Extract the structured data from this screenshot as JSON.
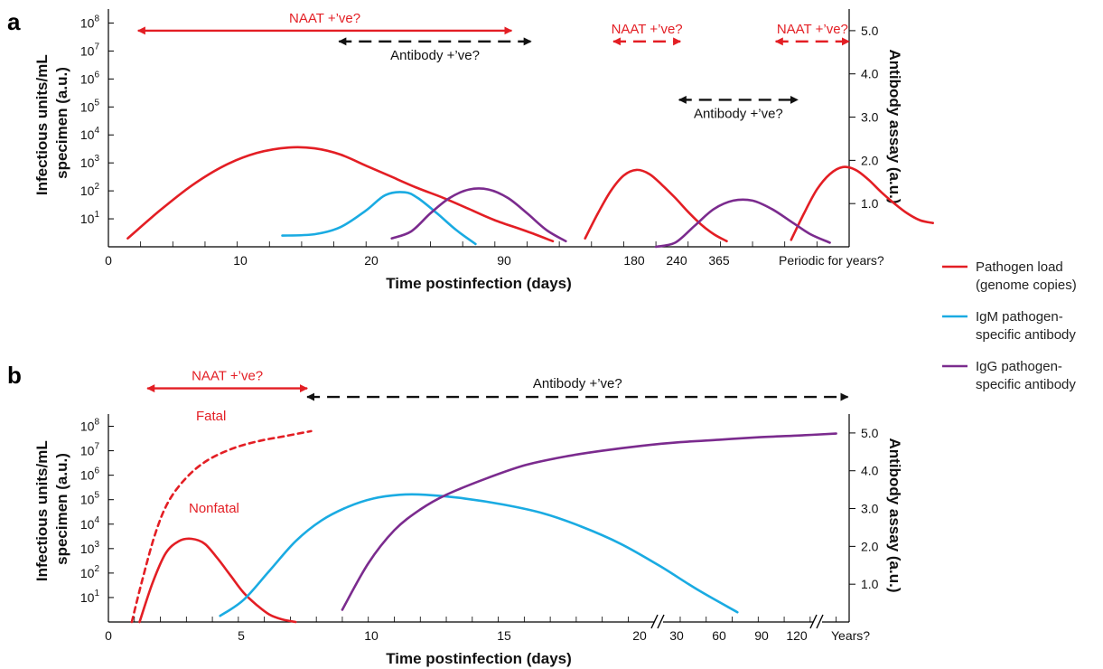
{
  "colors": {
    "pathogen": "#e31e24",
    "igm": "#1aabe2",
    "igg": "#7b2b8e",
    "axis": "#000000",
    "annotation_black": "#111111"
  },
  "legend": [
    {
      "key": "pathogen",
      "label_lines": [
        "Pathogen load",
        "(genome copies)"
      ]
    },
    {
      "key": "igm",
      "label_lines": [
        "IgM pathogen-",
        "specific antibody"
      ]
    },
    {
      "key": "igg",
      "label_lines": [
        "IgG pathogen-",
        "specific antibody"
      ]
    }
  ],
  "chart_data": [
    {
      "panel": "a",
      "type": "line",
      "xlabel": "Time postinfection (days)",
      "ylabel_left": [
        "Infectious units/mL",
        "specimen (a.u.)"
      ],
      "ylabel_right": "Antibody assay (a.u.)",
      "x_ticks": [
        "0",
        "10",
        "20",
        "90",
        "180",
        "240",
        "365",
        "Periodic for years?"
      ],
      "y_left_ticks": [
        {
          "base": "10",
          "exp": "1"
        },
        {
          "base": "10",
          "exp": "2"
        },
        {
          "base": "10",
          "exp": "3"
        },
        {
          "base": "10",
          "exp": "4"
        },
        {
          "base": "10",
          "exp": "5"
        },
        {
          "base": "10",
          "exp": "6"
        },
        {
          "base": "10",
          "exp": "7"
        },
        {
          "base": "10",
          "exp": "8"
        }
      ],
      "y_right_ticks": [
        "1.0",
        "2.0",
        "3.0",
        "4.0",
        "5.0"
      ],
      "ylim_left_log10": [
        0,
        8.5
      ],
      "ylim_right": [
        0,
        5.5
      ],
      "series": [
        {
          "name": "Pathogen load (genome copies)",
          "color_key": "pathogen",
          "axis": "left",
          "segments": [
            {
              "x": [
                1.5,
                4,
                6.5,
                9,
                11.5,
                14,
                16,
                18,
                20,
                22,
                24,
                26,
                28,
                30,
                32.5,
                34.5
              ],
              "y": [
                0.3,
                1.3,
                2.2,
                2.9,
                3.35,
                3.55,
                3.52,
                3.3,
                2.9,
                2.5,
                2.1,
                1.75,
                1.35,
                0.95,
                0.55,
                0.2
              ]
            },
            {
              "x": [
                37,
                38,
                39,
                40,
                41,
                42,
                43,
                44,
                45,
                46,
                47,
                48
              ],
              "y": [
                0.3,
                1.2,
                2.0,
                2.55,
                2.75,
                2.6,
                2.2,
                1.75,
                1.25,
                0.8,
                0.45,
                0.2
              ]
            },
            {
              "x": [
                53,
                54,
                55,
                56,
                57,
                58,
                59,
                60,
                61,
                62,
                63,
                64
              ],
              "y": [
                0.25,
                1.2,
                2.05,
                2.6,
                2.85,
                2.75,
                2.4,
                1.95,
                1.55,
                1.2,
                0.95,
                0.85
              ]
            }
          ]
        },
        {
          "name": "IgM pathogen-specific antibody",
          "color_key": "igm",
          "axis": "left",
          "segments": [
            {
              "x": [
                13.5,
                16,
                18,
                20,
                21.5,
                23,
                24,
                25.5,
                27,
                28.5
              ],
              "y": [
                0.4,
                0.45,
                0.7,
                1.3,
                1.85,
                1.95,
                1.75,
                1.2,
                0.6,
                0.1
              ]
            }
          ]
        },
        {
          "name": "IgG pathogen-specific antibody",
          "color_key": "igg",
          "axis": "left",
          "segments": [
            {
              "x": [
                22,
                23.5,
                25,
                26.5,
                28,
                29.5,
                31,
                32.5,
                34,
                35.5
              ],
              "y": [
                0.3,
                0.55,
                1.2,
                1.75,
                2.05,
                2.05,
                1.75,
                1.2,
                0.6,
                0.2
              ]
            },
            {
              "x": [
                42.5,
                44,
                45.5,
                47,
                48.5,
                50,
                51.5,
                53,
                54.5,
                56
              ],
              "y": [
                0,
                0.15,
                0.75,
                1.35,
                1.65,
                1.65,
                1.35,
                0.9,
                0.45,
                0.15
              ]
            }
          ]
        }
      ],
      "annotations": [
        {
          "label": "NAAT +’ve?",
          "color_key": "pathogen",
          "x_from": 2.3,
          "x_to": 31.3,
          "y": 5.0,
          "dashed": false
        },
        {
          "label": "Antibody +’ve?",
          "color_key": "annotation_black",
          "x_from": 17.9,
          "x_to": 32.8,
          "y": 4.75,
          "dashed": true
        },
        {
          "label": "NAAT +’ve?",
          "color_key": "pathogen",
          "x_from": 39.2,
          "x_to": 44.4,
          "y": 4.75,
          "dashed": true
        },
        {
          "label": "Antibody +’ve?",
          "color_key": "annotation_black",
          "x_from": 44.3,
          "x_to": 53.5,
          "y": 3.4,
          "dashed": true
        },
        {
          "label": "NAAT +’ve?",
          "color_key": "pathogen",
          "x_from": 51.8,
          "x_to": 57.5,
          "y": 4.75,
          "dashed": true
        }
      ]
    },
    {
      "panel": "b",
      "type": "line",
      "xlabel": "Time postinfection (days)",
      "ylabel_left": [
        "Infectious units/mL",
        "specimen (a.u.)"
      ],
      "ylabel_right": "Antibody assay (a.u.)",
      "x_ticks": [
        "0",
        "5",
        "10",
        "15",
        "20",
        "30",
        "60",
        "90",
        "120",
        "Years?"
      ],
      "y_left_ticks": [
        {
          "base": "10",
          "exp": "1"
        },
        {
          "base": "10",
          "exp": "2"
        },
        {
          "base": "10",
          "exp": "3"
        },
        {
          "base": "10",
          "exp": "4"
        },
        {
          "base": "10",
          "exp": "5"
        },
        {
          "base": "10",
          "exp": "6"
        },
        {
          "base": "10",
          "exp": "7"
        },
        {
          "base": "10",
          "exp": "8"
        }
      ],
      "y_right_ticks": [
        "1.0",
        "2.0",
        "3.0",
        "4.0",
        "5.0"
      ],
      "ylim_left_log10": [
        0,
        8.5
      ],
      "ylim_right": [
        0,
        5.5
      ],
      "series": [
        {
          "name": "Pathogen load (genome copies)",
          "color_key": "pathogen",
          "axis": "left",
          "label": "Nonfatal",
          "segments": [
            {
              "x": [
                1.2,
                1.7,
                2.2,
                2.7,
                3.2,
                3.7,
                4.2,
                4.7,
                5.2,
                5.7,
                6.2,
                6.7,
                7.2
              ],
              "y": [
                0,
                1.6,
                2.8,
                3.3,
                3.4,
                3.2,
                2.6,
                1.9,
                1.2,
                0.7,
                0.3,
                0.1,
                0
              ]
            }
          ]
        },
        {
          "name": "Pathogen load (genome copies)",
          "color_key": "pathogen",
          "axis": "left",
          "label": "Fatal",
          "dashed": true,
          "segments": [
            {
              "x": [
                0.9,
                1.3,
                1.8,
                2.3,
                3.0,
                3.8,
                4.8,
                5.8,
                6.8,
                7.8
              ],
              "y": [
                0,
                1.7,
                3.6,
                4.9,
                5.9,
                6.6,
                7.1,
                7.4,
                7.6,
                7.8
              ]
            }
          ]
        },
        {
          "name": "IgM pathogen-specific antibody",
          "color_key": "igm",
          "axis": "left",
          "segments": [
            {
              "x": [
                4.3,
                5.2,
                6.2,
                7.2,
                8.2,
                9.2,
                10.2,
                11.2,
                12.2,
                13.7,
                15.2,
                16.7,
                18.2,
                19.7,
                21.2,
                22.7,
                24.2
              ],
              "y": [
                0.25,
                0.9,
                2.1,
                3.3,
                4.15,
                4.7,
                5.05,
                5.2,
                5.2,
                5.05,
                4.8,
                4.45,
                3.9,
                3.2,
                2.3,
                1.3,
                0.4
              ]
            }
          ]
        },
        {
          "name": "IgG pathogen-specific antibody",
          "color_key": "igg",
          "axis": "left",
          "segments": [
            {
              "x": [
                9.0,
                10.0,
                11.0,
                12.0,
                13.0,
                14.5,
                16.0,
                17.5,
                19.0,
                20.5,
                22.0,
                23.5,
                25.0,
                26.5,
                28.0
              ],
              "y": [
                0.5,
                2.4,
                3.75,
                4.6,
                5.2,
                5.85,
                6.4,
                6.75,
                7.0,
                7.2,
                7.35,
                7.45,
                7.55,
                7.62,
                7.7
              ]
            }
          ]
        }
      ],
      "annotations": [
        {
          "label": "NAAT +’ve?",
          "color_key": "pathogen",
          "x_from": 1.5,
          "x_to": 7.65,
          "y": 9.55,
          "dashed": false
        },
        {
          "label": "Antibody  +’ve?",
          "color_key": "annotation_black",
          "x_from": 7.65,
          "x_to": 28.45,
          "y": 9.2,
          "dashed": true
        }
      ],
      "text_labels": [
        {
          "label": "Fatal",
          "color_key": "pathogen"
        },
        {
          "label": "Nonfatal",
          "color_key": "pathogen"
        }
      ],
      "axis_breaks": [
        "20-30",
        "120-Years?"
      ]
    }
  ]
}
